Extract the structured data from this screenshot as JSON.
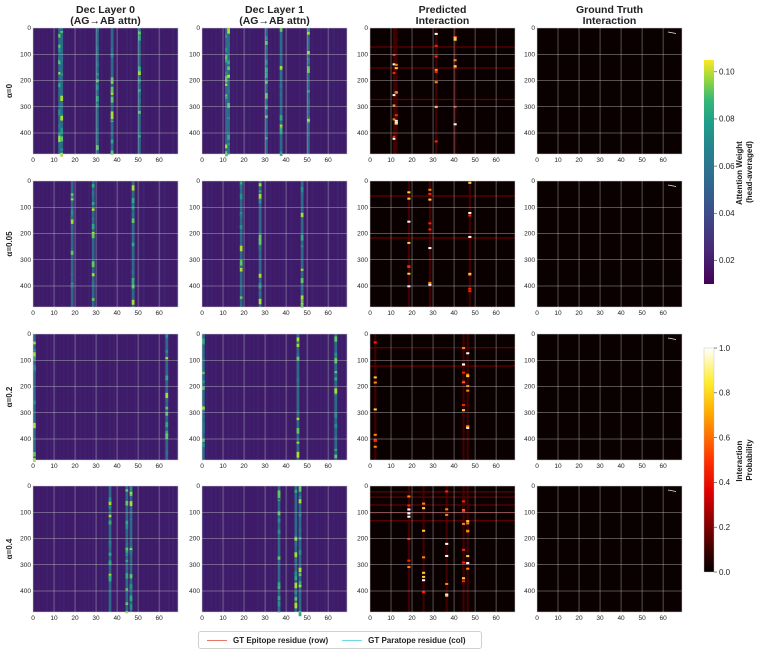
{
  "columns": [
    {
      "title_l1": "Dec Layer 0",
      "title_l2": "(AG→AB attn)",
      "kind": "attn"
    },
    {
      "title_l1": "Dec Layer 1",
      "title_l2": "(AG→AB attn)",
      "kind": "attn"
    },
    {
      "title_l1": "Predicted",
      "title_l2": "Interaction",
      "kind": "pred"
    },
    {
      "title_l1": "Ground Truth",
      "title_l2": "Interaction",
      "kind": "gt"
    }
  ],
  "rows": [
    {
      "label": "α=0"
    },
    {
      "label": "α=0.05"
    },
    {
      "label": "α=0.2"
    },
    {
      "label": "α=0.4"
    }
  ],
  "colorbars": {
    "attention": {
      "label_l1": "Attention Weight",
      "label_l2": "(head-averaged)",
      "ticks": [
        "0.02",
        "0.04",
        "0.06",
        "0.08",
        "0.10"
      ],
      "tick_values": [
        0.02,
        0.04,
        0.06,
        0.08,
        0.1
      ],
      "range": [
        0.01,
        0.105
      ],
      "colormap": "viridis"
    },
    "probability": {
      "label_l1": "Interaction",
      "label_l2": "Probability",
      "ticks": [
        "0.0",
        "0.2",
        "0.4",
        "0.6",
        "0.8",
        "1.0"
      ],
      "tick_values": [
        0.0,
        0.2,
        0.4,
        0.6,
        0.8,
        1.0
      ],
      "range": [
        0.0,
        1.0
      ],
      "colormap": "hot"
    }
  },
  "legend": {
    "epitope_label": "GT Epitope residue (row)",
    "epitope_color": "#e8746a",
    "paratope_label": "GT Paratope residue (col)",
    "paratope_color": "#6fd8e8"
  },
  "chart_data": {
    "type": "heatmap",
    "x_ticks": [
      "0",
      "10",
      "20",
      "30",
      "40",
      "50",
      "60"
    ],
    "y_ticks": [
      "0",
      "100",
      "200",
      "300",
      "400"
    ],
    "xlim": [
      0,
      69
    ],
    "ylim": [
      0,
      480
    ],
    "grid": true,
    "panels": [
      {
        "row": "α=0",
        "column": "Dec Layer 0",
        "highlight_cols": [
          12,
          13,
          30,
          37,
          50
        ],
        "highlight_rows": []
      },
      {
        "row": "α=0",
        "column": "Dec Layer 1",
        "highlight_cols": [
          11,
          12,
          30,
          37,
          50
        ],
        "highlight_rows": []
      },
      {
        "row": "α=0",
        "column": "Predicted",
        "highlight_cols": [
          11,
          12,
          31,
          40
        ],
        "highlight_rows": [
          70,
          150,
          270
        ]
      },
      {
        "row": "α=0",
        "column": "Ground Truth",
        "highlight_cols": [],
        "highlight_rows": []
      },
      {
        "row": "α=0.05",
        "column": "Dec Layer 0",
        "highlight_cols": [
          18,
          28,
          47
        ],
        "highlight_rows": []
      },
      {
        "row": "α=0.05",
        "column": "Dec Layer 1",
        "highlight_cols": [
          18,
          27,
          47
        ],
        "highlight_rows": []
      },
      {
        "row": "α=0.05",
        "column": "Predicted",
        "highlight_cols": [
          18,
          28,
          47
        ],
        "highlight_rows": [
          55,
          215
        ]
      },
      {
        "row": "α=0.05",
        "column": "Ground Truth",
        "highlight_cols": [],
        "highlight_rows": []
      },
      {
        "row": "α=0.2",
        "column": "Dec Layer 0",
        "highlight_cols": [
          0,
          63
        ],
        "highlight_rows": []
      },
      {
        "row": "α=0.2",
        "column": "Dec Layer 1",
        "highlight_cols": [
          0,
          45,
          63
        ],
        "highlight_rows": []
      },
      {
        "row": "α=0.2",
        "column": "Predicted",
        "highlight_cols": [
          2,
          44,
          46
        ],
        "highlight_rows": [
          50,
          120
        ]
      },
      {
        "row": "α=0.2",
        "column": "Ground Truth",
        "highlight_cols": [],
        "highlight_rows": []
      },
      {
        "row": "α=0.4",
        "column": "Dec Layer 0",
        "highlight_cols": [
          36,
          44,
          46
        ],
        "highlight_rows": []
      },
      {
        "row": "α=0.4",
        "column": "Dec Layer 1",
        "highlight_cols": [
          36,
          44,
          46
        ],
        "highlight_rows": []
      },
      {
        "row": "α=0.4",
        "column": "Predicted",
        "highlight_cols": [
          18,
          25,
          36,
          44,
          46
        ],
        "highlight_rows": [
          20,
          40,
          70,
          100,
          130
        ]
      },
      {
        "row": "α=0.4",
        "column": "Ground Truth",
        "highlight_cols": [],
        "highlight_rows": []
      }
    ]
  }
}
